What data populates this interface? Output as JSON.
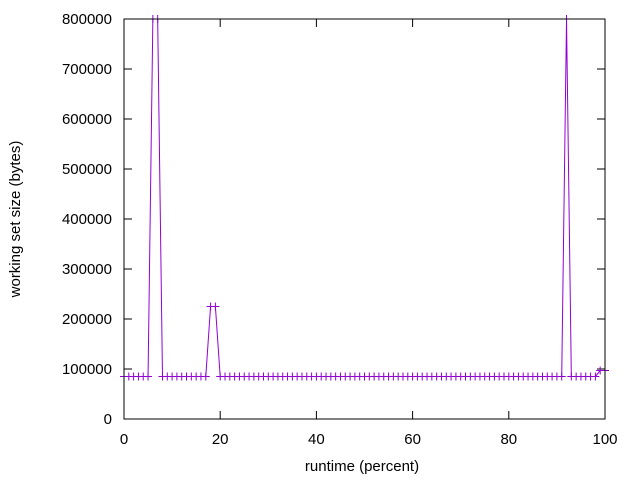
{
  "chart_data": {
    "type": "line",
    "title": "",
    "xlabel": "runtime (percent)",
    "ylabel": "working set size (bytes)",
    "xlim": [
      0,
      100
    ],
    "ylim": [
      0,
      800000
    ],
    "xticks": [
      0,
      20,
      40,
      60,
      80,
      100
    ],
    "yticks": [
      0,
      100000,
      200000,
      300000,
      400000,
      500000,
      600000,
      700000,
      800000
    ],
    "grid": false,
    "legend": "none",
    "series": [
      {
        "color": "#9400d3",
        "marker": "plus",
        "x": [
          0,
          1,
          2,
          3,
          4,
          5,
          6,
          7,
          8,
          9,
          10,
          11,
          12,
          13,
          14,
          15,
          16,
          17,
          18,
          19,
          20,
          21,
          22,
          23,
          24,
          25,
          26,
          27,
          28,
          29,
          30,
          31,
          32,
          33,
          34,
          35,
          36,
          37,
          38,
          39,
          40,
          41,
          42,
          43,
          44,
          45,
          46,
          47,
          48,
          49,
          50,
          51,
          52,
          53,
          54,
          55,
          56,
          57,
          58,
          59,
          60,
          61,
          62,
          63,
          64,
          65,
          66,
          67,
          68,
          69,
          70,
          71,
          72,
          73,
          74,
          75,
          76,
          77,
          78,
          79,
          80,
          81,
          82,
          83,
          84,
          85,
          86,
          87,
          88,
          89,
          90,
          91,
          92,
          93,
          94,
          95,
          96,
          97,
          98,
          99,
          100
        ],
        "y": [
          85000,
          85000,
          85000,
          85000,
          85000,
          85000,
          800000,
          800000,
          85000,
          85000,
          85000,
          85000,
          85000,
          85000,
          85000,
          85000,
          85000,
          85000,
          225000,
          225000,
          85000,
          85000,
          85000,
          85000,
          85000,
          85000,
          85000,
          85000,
          85000,
          85000,
          85000,
          85000,
          85000,
          85000,
          85000,
          85000,
          85000,
          85000,
          85000,
          85000,
          85000,
          85000,
          85000,
          85000,
          85000,
          85000,
          85000,
          85000,
          85000,
          85000,
          85000,
          85000,
          85000,
          85000,
          85000,
          85000,
          85000,
          85000,
          85000,
          85000,
          85000,
          85000,
          85000,
          85000,
          85000,
          85000,
          85000,
          85000,
          85000,
          85000,
          85000,
          85000,
          85000,
          85000,
          85000,
          85000,
          85000,
          85000,
          85000,
          85000,
          85000,
          85000,
          85000,
          85000,
          85000,
          85000,
          85000,
          85000,
          85000,
          85000,
          85000,
          85000,
          800000,
          85000,
          85000,
          85000,
          85000,
          85000,
          85000,
          97000,
          97000
        ]
      }
    ]
  }
}
